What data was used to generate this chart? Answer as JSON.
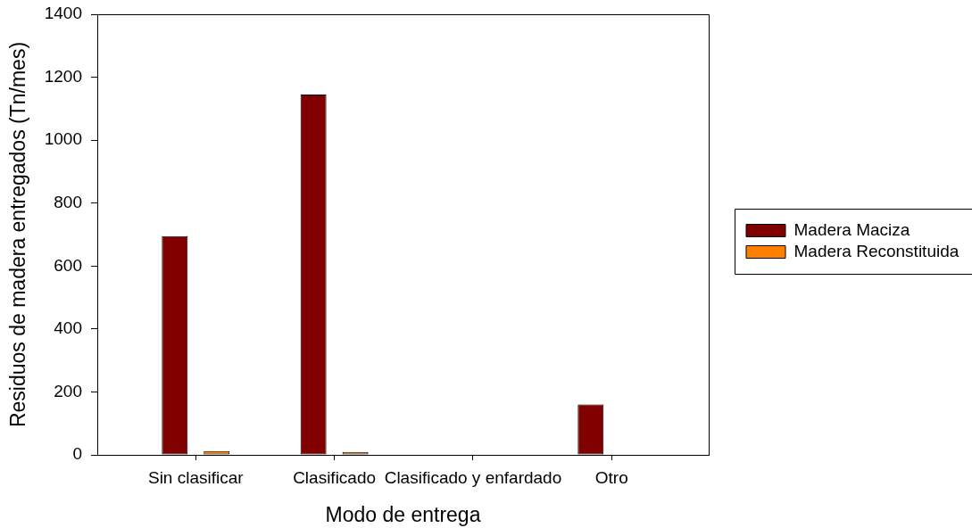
{
  "chart_data": {
    "type": "bar",
    "xlabel": "Modo de entrega",
    "ylabel": "Residuos de madera entregados (Tn/mes)",
    "categories": [
      "Sin clasificar",
      "Clasificado",
      "Clasificado y enfardado",
      "Otro"
    ],
    "series": [
      {
        "name": "Madera Maciza",
        "color": "#800000",
        "values": [
          695,
          1145,
          null,
          160
        ]
      },
      {
        "name": "Madera Reconstituida",
        "color": "#ff8000",
        "values": [
          12,
          9,
          null,
          null
        ]
      }
    ],
    "ylim": [
      0,
      1400
    ],
    "yticks": [
      0,
      200,
      400,
      600,
      800,
      1000,
      1200,
      1400
    ],
    "grid": false,
    "legend": "right"
  }
}
